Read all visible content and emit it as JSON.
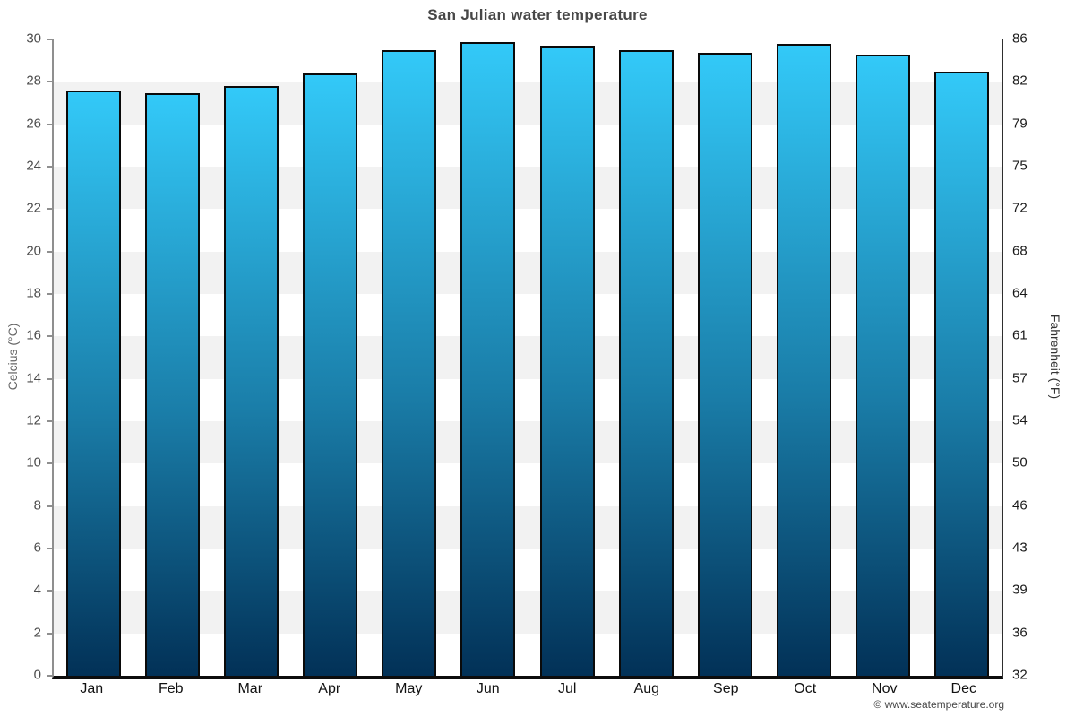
{
  "page": {
    "footer": "© www.seatemperature.org"
  },
  "chart_data": {
    "type": "bar",
    "title": "San Julian water temperature",
    "categories": [
      "Jan",
      "Feb",
      "Mar",
      "Apr",
      "May",
      "Jun",
      "Jul",
      "Aug",
      "Sep",
      "Oct",
      "Nov",
      "Dec"
    ],
    "values": [
      27.5,
      27.4,
      27.7,
      28.3,
      29.4,
      29.8,
      29.6,
      29.4,
      29.3,
      29.7,
      29.2,
      28.4
    ],
    "xlabel": "",
    "ylabel_left": "Celcius (°C)",
    "ylabel_right": "Fahrenheit (°F)",
    "ylim": [
      0,
      30
    ],
    "celsius_ticks": [
      30,
      28,
      26,
      24,
      22,
      20,
      18,
      16,
      14,
      12,
      10,
      8,
      6,
      4,
      2,
      0
    ],
    "fahrenheit_tick_labels": [
      "86",
      "82",
      "79",
      "75",
      "72",
      "68",
      "64",
      "61",
      "57",
      "54",
      "50",
      "46",
      "43",
      "39",
      "36",
      "32"
    ],
    "grid": "horizontal alternating bands every 2°C, light gridlines",
    "legend_position": "none",
    "colors": {
      "bar_gradient_top": "#33c9f8",
      "bar_gradient_bottom": "#023157",
      "bar_border": "#0a0a0a",
      "band_alt": "#f2f2f2",
      "gridline": "#e6e6e6",
      "title": "#474747"
    }
  }
}
